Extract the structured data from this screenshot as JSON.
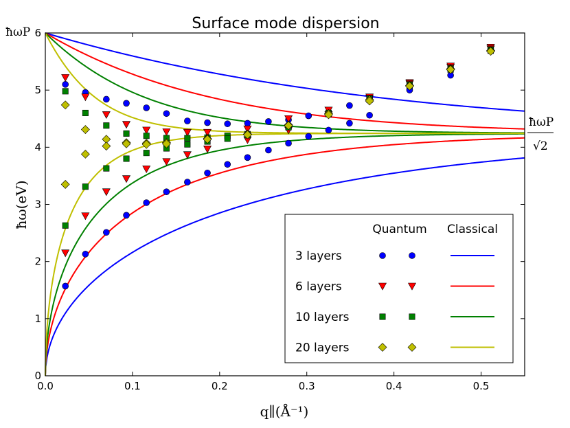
{
  "chart_data": {
    "type": "scatter",
    "title": "Surface mode dispersion",
    "xlabel": "q∥(Å⁻¹)",
    "ylabel": "ħω(eV)",
    "xlim": [
      0,
      0.55
    ],
    "ylim": [
      0,
      6
    ],
    "xticks": [
      "0.0",
      "0.1",
      "0.2",
      "0.3",
      "0.4",
      "0.5"
    ],
    "yticks": [
      "0",
      "1",
      "2",
      "3",
      "4",
      "5",
      "6"
    ],
    "annotations": {
      "top_left": "ħωP",
      "right_numerator": "ħωP",
      "right_denominator": "√2"
    },
    "plasma_energy": 6.0,
    "legend": {
      "position": "lower-right",
      "header_quantum": "Quantum",
      "header_classical": "Classical",
      "entries": [
        {
          "label": "3 layers",
          "color": "#0000ff",
          "marker": "circle"
        },
        {
          "label": "6 layers",
          "color": "#ff0000",
          "marker": "triangle-down"
        },
        {
          "label": "10 layers",
          "color": "#008000",
          "marker": "square"
        },
        {
          "label": "20 layers",
          "color": "#bfbf00",
          "marker": "diamond"
        }
      ]
    },
    "series": [
      {
        "name": "3 layers",
        "color": "#0000ff",
        "marker": "circle",
        "thickness": 3,
        "upper": [
          [
            0.023,
            5.1
          ],
          [
            0.046,
            4.96
          ],
          [
            0.07,
            4.84
          ],
          [
            0.093,
            4.77
          ],
          [
            0.116,
            4.69
          ],
          [
            0.139,
            4.59
          ],
          [
            0.163,
            4.46
          ],
          [
            0.186,
            4.43
          ],
          [
            0.209,
            4.41
          ],
          [
            0.232,
            4.42
          ],
          [
            0.256,
            4.45
          ],
          [
            0.279,
            4.48
          ],
          [
            0.302,
            4.55
          ],
          [
            0.325,
            4.6
          ],
          [
            0.349,
            4.73
          ],
          [
            0.372,
            4.86
          ],
          [
            0.418,
            5.0
          ],
          [
            0.465,
            5.26
          ],
          [
            0.511,
            5.72
          ]
        ],
        "lower": [
          [
            0.023,
            1.57
          ],
          [
            0.046,
            2.13
          ],
          [
            0.07,
            2.51
          ],
          [
            0.093,
            2.81
          ],
          [
            0.116,
            3.03
          ],
          [
            0.139,
            3.22
          ],
          [
            0.163,
            3.39
          ],
          [
            0.186,
            3.55
          ],
          [
            0.209,
            3.7
          ],
          [
            0.232,
            3.82
          ],
          [
            0.256,
            3.95
          ],
          [
            0.279,
            4.07
          ],
          [
            0.302,
            4.19
          ],
          [
            0.325,
            4.3
          ],
          [
            0.349,
            4.42
          ],
          [
            0.372,
            4.56
          ]
        ]
      },
      {
        "name": "6 layers",
        "color": "#ff0000",
        "marker": "triangle-down",
        "thickness": 6,
        "upper": [
          [
            0.023,
            5.22
          ],
          [
            0.046,
            4.88
          ],
          [
            0.07,
            4.57
          ],
          [
            0.093,
            4.4
          ],
          [
            0.116,
            4.3
          ],
          [
            0.139,
            4.27
          ],
          [
            0.163,
            4.26
          ],
          [
            0.186,
            4.26
          ],
          [
            0.232,
            4.32
          ],
          [
            0.279,
            4.5
          ],
          [
            0.325,
            4.65
          ],
          [
            0.372,
            4.88
          ],
          [
            0.418,
            5.13
          ],
          [
            0.465,
            5.42
          ],
          [
            0.511,
            5.75
          ]
        ],
        "lower": [
          [
            0.023,
            2.15
          ],
          [
            0.046,
            2.8
          ],
          [
            0.07,
            3.22
          ],
          [
            0.093,
            3.45
          ],
          [
            0.116,
            3.62
          ],
          [
            0.139,
            3.75
          ],
          [
            0.163,
            3.87
          ],
          [
            0.186,
            3.97
          ],
          [
            0.232,
            4.13
          ],
          [
            0.279,
            4.3
          ],
          [
            0.325,
            4.57
          ],
          [
            0.372,
            4.86
          ],
          [
            0.418,
            5.11
          ],
          [
            0.465,
            5.4
          ],
          [
            0.511,
            5.72
          ]
        ]
      },
      {
        "name": "10 layers",
        "color": "#008000",
        "marker": "square",
        "thickness": 10,
        "upper": [
          [
            0.023,
            4.98
          ],
          [
            0.046,
            4.6
          ],
          [
            0.07,
            4.38
          ],
          [
            0.093,
            4.24
          ],
          [
            0.116,
            4.2
          ],
          [
            0.139,
            4.16
          ],
          [
            0.163,
            4.16
          ],
          [
            0.186,
            4.17
          ],
          [
            0.209,
            4.2
          ],
          [
            0.232,
            4.23
          ],
          [
            0.279,
            4.36
          ],
          [
            0.325,
            4.6
          ],
          [
            0.372,
            4.85
          ],
          [
            0.418,
            5.1
          ],
          [
            0.465,
            5.38
          ],
          [
            0.511,
            5.71
          ]
        ],
        "lower": [
          [
            0.023,
            2.63
          ],
          [
            0.046,
            3.31
          ],
          [
            0.07,
            3.63
          ],
          [
            0.093,
            3.8
          ],
          [
            0.116,
            3.9
          ],
          [
            0.139,
            3.98
          ],
          [
            0.163,
            4.05
          ],
          [
            0.186,
            4.1
          ],
          [
            0.209,
            4.15
          ],
          [
            0.232,
            4.21
          ],
          [
            0.279,
            4.35
          ],
          [
            0.325,
            4.58
          ],
          [
            0.372,
            4.83
          ],
          [
            0.418,
            5.08
          ],
          [
            0.465,
            5.36
          ],
          [
            0.511,
            5.69
          ]
        ]
      },
      {
        "name": "20 layers",
        "color": "#bfbf00",
        "marker": "diamond",
        "thickness": 20,
        "upper": [
          [
            0.023,
            4.74
          ],
          [
            0.046,
            4.31
          ],
          [
            0.07,
            4.14
          ],
          [
            0.093,
            4.08
          ],
          [
            0.116,
            4.07
          ],
          [
            0.139,
            4.08
          ],
          [
            0.186,
            4.15
          ],
          [
            0.232,
            4.23
          ],
          [
            0.279,
            4.39
          ],
          [
            0.325,
            4.59
          ],
          [
            0.372,
            4.83
          ],
          [
            0.418,
            5.08
          ],
          [
            0.465,
            5.37
          ],
          [
            0.511,
            5.69
          ]
        ],
        "lower": [
          [
            0.023,
            3.35
          ],
          [
            0.046,
            3.88
          ],
          [
            0.07,
            4.02
          ],
          [
            0.093,
            4.06
          ],
          [
            0.116,
            4.05
          ],
          [
            0.139,
            4.06
          ],
          [
            0.186,
            4.14
          ],
          [
            0.232,
            4.22
          ],
          [
            0.279,
            4.38
          ],
          [
            0.325,
            4.57
          ],
          [
            0.372,
            4.81
          ],
          [
            0.418,
            5.07
          ],
          [
            0.465,
            5.36
          ],
          [
            0.511,
            5.68
          ]
        ]
      }
    ]
  }
}
